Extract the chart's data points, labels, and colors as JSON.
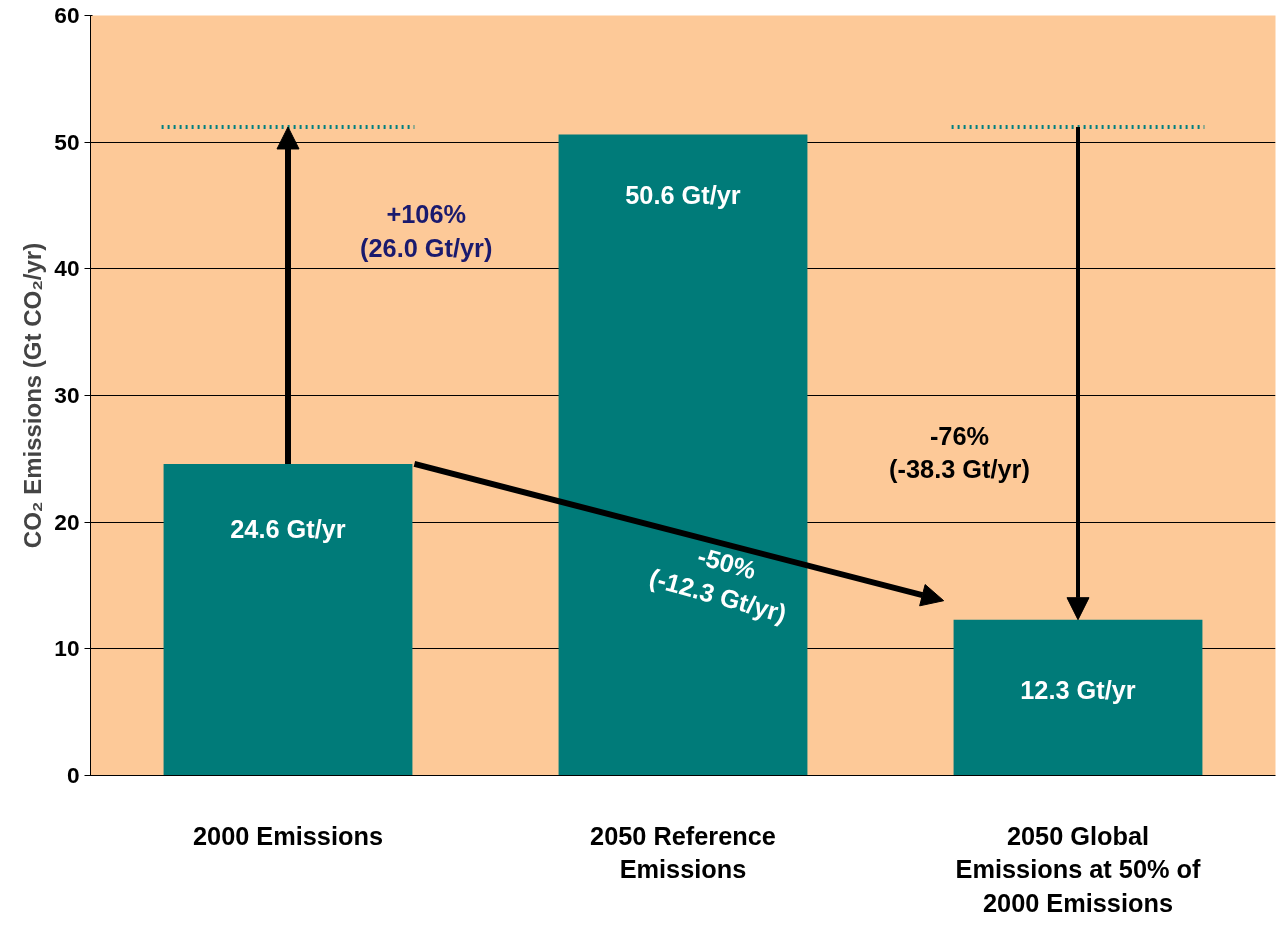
{
  "chart_data": {
    "type": "bar",
    "ylabel": "CO₂ Emissions (Gt CO₂/yr)",
    "categories": [
      "2000 Emissions",
      "2050 Reference Emissions",
      "2050 Global Emissions at 50% of 2000 Emissions"
    ],
    "values": [
      24.6,
      50.6,
      12.3
    ],
    "color": "#007b79",
    "value_labels": [
      "24.6 Gt/yr",
      "50.6 Gt/yr",
      "12.3 Gt/yr"
    ],
    "ylim": [
      0,
      60
    ],
    "yticks": [
      0,
      10,
      20,
      30,
      40,
      50,
      60
    ],
    "grid": "y",
    "ref_lines": [
      {
        "axis": "y",
        "value": 51.2,
        "color": "#008080",
        "line_style": "dotted"
      }
    ],
    "annotations": [
      "+106%\n(26.0 Gt/yr)",
      "-76%\n(-38.3 Gt/yr)",
      "-50%\n(-12.3 Gt/yr)"
    ]
  }
}
